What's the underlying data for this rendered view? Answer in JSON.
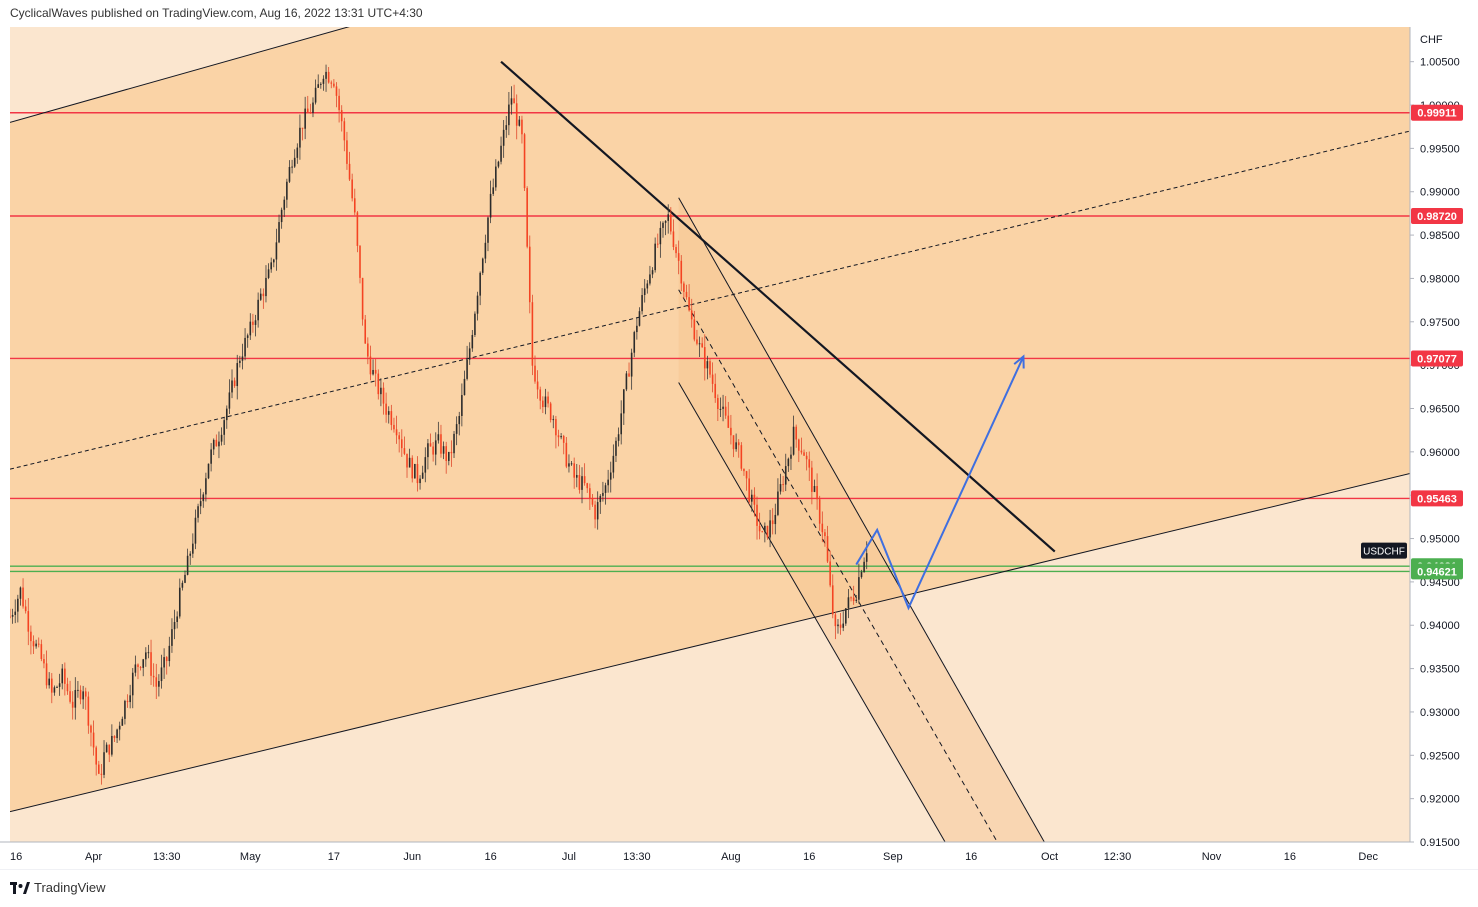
{
  "header": {
    "publisher_text": "CyclicalWaves published on TradingView.com, Aug 16, 2022 13:31 UTC+4:30"
  },
  "footer": {
    "brand": "TradingView",
    "logo_icon": "tradingview-logo-icon"
  },
  "chart_data": {
    "type": "candlestick",
    "symbol": "USDCHF",
    "currency": "CHF",
    "ylim": [
      0.915,
      1.009
    ],
    "y_ticks": [
      "1.00500",
      "1.00000",
      "0.99500",
      "0.99000",
      "0.98500",
      "0.98000",
      "0.97500",
      "0.97000",
      "0.96500",
      "0.96000",
      "0.95500",
      "0.95000",
      "0.94500",
      "0.94000",
      "0.93500",
      "0.93000",
      "0.92500",
      "0.92000",
      "0.91500"
    ],
    "x_ticks": [
      {
        "label": "16",
        "d": 0
      },
      {
        "label": "Apr",
        "d": 16
      },
      {
        "label": "13:30",
        "d": 30
      },
      {
        "label": "May",
        "d": 46
      },
      {
        "label": "17",
        "d": 62
      },
      {
        "label": "Jun",
        "d": 77
      },
      {
        "label": "16",
        "d": 92
      },
      {
        "label": "Jul",
        "d": 107
      },
      {
        "label": "13:30",
        "d": 120
      },
      {
        "label": "Aug",
        "d": 138
      },
      {
        "label": "16",
        "d": 153
      },
      {
        "label": "Sep",
        "d": 169
      },
      {
        "label": "16",
        "d": 184
      },
      {
        "label": "Oct",
        "d": 199
      },
      {
        "label": "12:30",
        "d": 212
      },
      {
        "label": "Nov",
        "d": 230
      },
      {
        "label": "16",
        "d": 245
      },
      {
        "label": "Dec",
        "d": 260
      }
    ],
    "x_domain": [
      0,
      268
    ],
    "price_lines": [
      {
        "value": 0.99911,
        "label": "0.99911",
        "color": "#f23645"
      },
      {
        "value": 0.9872,
        "label": "0.98720",
        "color": "#f23645"
      },
      {
        "value": 0.97077,
        "label": "0.97077",
        "color": "#f23645"
      },
      {
        "value": 0.95463,
        "label": "0.95463",
        "color": "#f23645"
      },
      {
        "value": 0.94681,
        "label": "0.94681",
        "color": "#4caf50"
      },
      {
        "value": 0.94621,
        "label": "0.94621",
        "color": "#4caf50"
      }
    ],
    "current_label": {
      "text": "USDCHF",
      "value": 0.9486
    },
    "price_path": [
      [
        0,
        0.941
      ],
      [
        2,
        0.944
      ],
      [
        4,
        0.939
      ],
      [
        6,
        0.936
      ],
      [
        8,
        0.932
      ],
      [
        10,
        0.934
      ],
      [
        12,
        0.931
      ],
      [
        14,
        0.933
      ],
      [
        16,
        0.926
      ],
      [
        17,
        0.922
      ],
      [
        18,
        0.925
      ],
      [
        20,
        0.927
      ],
      [
        22,
        0.931
      ],
      [
        24,
        0.935
      ],
      [
        26,
        0.937
      ],
      [
        28,
        0.933
      ],
      [
        30,
        0.936
      ],
      [
        32,
        0.942
      ],
      [
        34,
        0.947
      ],
      [
        36,
        0.953
      ],
      [
        38,
        0.959
      ],
      [
        40,
        0.962
      ],
      [
        42,
        0.966
      ],
      [
        44,
        0.971
      ],
      [
        46,
        0.974
      ],
      [
        48,
        0.978
      ],
      [
        50,
        0.981
      ],
      [
        52,
        0.988
      ],
      [
        54,
        0.994
      ],
      [
        56,
        0.998
      ],
      [
        58,
        1.0
      ],
      [
        60,
        1.004
      ],
      [
        62,
        1.003
      ],
      [
        64,
        0.996
      ],
      [
        66,
        0.987
      ],
      [
        68,
        0.972
      ],
      [
        70,
        0.968
      ],
      [
        72,
        0.965
      ],
      [
        74,
        0.963
      ],
      [
        76,
        0.959
      ],
      [
        78,
        0.957
      ],
      [
        80,
        0.96
      ],
      [
        82,
        0.961
      ],
      [
        84,
        0.959
      ],
      [
        86,
        0.964
      ],
      [
        88,
        0.972
      ],
      [
        90,
        0.981
      ],
      [
        92,
        0.989
      ],
      [
        94,
        0.995
      ],
      [
        96,
        1.001
      ],
      [
        98,
        0.996
      ],
      [
        100,
        0.97
      ],
      [
        102,
        0.966
      ],
      [
        104,
        0.964
      ],
      [
        106,
        0.96
      ],
      [
        108,
        0.957
      ],
      [
        110,
        0.956
      ],
      [
        112,
        0.953
      ],
      [
        114,
        0.956
      ],
      [
        116,
        0.961
      ],
      [
        118,
        0.968
      ],
      [
        120,
        0.975
      ],
      [
        122,
        0.98
      ],
      [
        124,
        0.984
      ],
      [
        126,
        0.987
      ],
      [
        128,
        0.982
      ],
      [
        130,
        0.976
      ],
      [
        132,
        0.972
      ],
      [
        134,
        0.969
      ],
      [
        136,
        0.965
      ],
      [
        138,
        0.962
      ],
      [
        140,
        0.959
      ],
      [
        142,
        0.954
      ],
      [
        144,
        0.95
      ],
      [
        146,
        0.952
      ],
      [
        148,
        0.957
      ],
      [
        150,
        0.962
      ],
      [
        152,
        0.96
      ],
      [
        154,
        0.955
      ],
      [
        156,
        0.95
      ],
      [
        157,
        0.944
      ],
      [
        158,
        0.939
      ],
      [
        159,
        0.94
      ],
      [
        160,
        0.942
      ],
      [
        162,
        0.944
      ],
      [
        163,
        0.947
      ],
      [
        164,
        0.949
      ]
    ],
    "projection": [
      [
        162,
        0.947
      ],
      [
        166,
        0.951
      ],
      [
        172,
        0.942
      ],
      [
        194,
        0.971
      ]
    ],
    "channel_main": {
      "upper": [
        [
          0,
          0.998
        ],
        [
          100,
          1.015
        ]
      ],
      "middle": [
        [
          0,
          0.958
        ],
        [
          268,
          0.997
        ]
      ],
      "lower": [
        [
          0,
          0.9185
        ],
        [
          268,
          0.9575
        ]
      ]
    },
    "down_channel": {
      "upper": [
        [
          128,
          0.9893
        ],
        [
          198,
          0.915
        ]
      ],
      "middle": [
        [
          128,
          0.9787
        ],
        [
          189,
          0.915
        ]
      ],
      "lower": [
        [
          128,
          0.968
        ],
        [
          179,
          0.915
        ]
      ]
    },
    "trendline": [
      [
        94,
        1.005
      ],
      [
        200,
        0.9485
      ]
    ]
  }
}
